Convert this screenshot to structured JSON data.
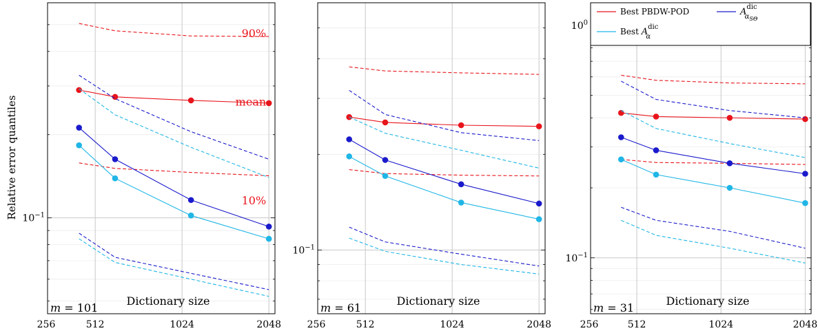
{
  "ylabel": "Relative error quantiles",
  "colors": {
    "pbdw": "#e8141b",
    "sgo": "#1a1acc",
    "alpha": "#1fb6e6"
  },
  "legend": [
    {
      "key": "pbdw",
      "label": "Best PBDW-POD",
      "math": false
    },
    {
      "key": "sgo",
      "label": "A",
      "math": true,
      "sup": "dic",
      "sub": "α",
      "subsub": "SΘ"
    },
    {
      "key": "alpha",
      "label": "Best A",
      "math": true,
      "sup": "dic",
      "sub": "α",
      "subsub": ""
    }
  ],
  "chart_data": [
    {
      "type": "line",
      "panel_label": "m = 101",
      "xlabel": "Dictionary size",
      "x_ticks": [
        256,
        512,
        1024,
        2048
      ],
      "x": [
        450,
        600,
        1100,
        2048
      ],
      "xlim": [
        350,
        2150
      ],
      "ylim": [
        0.045,
        0.6
      ],
      "yscale": "log",
      "y_ticks": [
        0.1
      ],
      "y_tick_labels": [
        "10^-1"
      ],
      "annotations": [
        {
          "text": "90%",
          "x": 2048,
          "y": 0.45
        },
        {
          "text": "mean",
          "x": 2048,
          "y": 0.255
        },
        {
          "text": "10%",
          "x": 2048,
          "y": 0.112
        }
      ],
      "series": [
        {
          "key": "pbdw",
          "stat": "mean",
          "values": [
            0.29,
            0.274,
            0.266,
            0.26
          ],
          "markers": true
        },
        {
          "key": "pbdw",
          "stat": "90%",
          "values": [
            0.505,
            0.475,
            0.455,
            0.453
          ],
          "markers": false
        },
        {
          "key": "pbdw",
          "stat": "10%",
          "values": [
            0.158,
            0.151,
            0.146,
            0.142
          ],
          "markers": false
        },
        {
          "key": "sgo",
          "stat": "mean",
          "values": [
            0.212,
            0.163,
            0.116,
            0.093
          ],
          "markers": true
        },
        {
          "key": "sgo",
          "stat": "90%",
          "values": [
            0.328,
            0.27,
            0.205,
            0.163
          ],
          "markers": false
        },
        {
          "key": "sgo",
          "stat": "10%",
          "values": [
            0.088,
            0.072,
            0.063,
            0.055
          ],
          "markers": false
        },
        {
          "key": "alpha",
          "stat": "mean",
          "values": [
            0.183,
            0.139,
            0.102,
            0.084
          ],
          "markers": true
        },
        {
          "key": "alpha",
          "stat": "90%",
          "values": [
            0.293,
            0.236,
            0.18,
            0.14
          ],
          "markers": false
        },
        {
          "key": "alpha",
          "stat": "10%",
          "values": [
            0.084,
            0.069,
            0.06,
            0.052
          ],
          "markers": false
        }
      ]
    },
    {
      "type": "line",
      "panel_label": "m = 61",
      "xlabel": "Dictionary size",
      "x_ticks": [
        256,
        512,
        1024,
        2048
      ],
      "x": [
        450,
        600,
        1100,
        2048
      ],
      "xlim": [
        350,
        2150
      ],
      "ylim": [
        0.063,
        0.6
      ],
      "yscale": "log",
      "y_ticks": [
        0.1
      ],
      "y_tick_labels": [
        "10^-1"
      ],
      "annotations": [],
      "series": [
        {
          "key": "pbdw",
          "stat": "mean",
          "values": [
            0.262,
            0.252,
            0.247,
            0.245
          ],
          "markers": true
        },
        {
          "key": "pbdw",
          "stat": "90%",
          "values": [
            0.377,
            0.366,
            0.361,
            0.357
          ],
          "markers": false
        },
        {
          "key": "pbdw",
          "stat": "10%",
          "values": [
            0.179,
            0.174,
            0.172,
            0.171
          ],
          "markers": false
        },
        {
          "key": "sgo",
          "stat": "mean",
          "values": [
            0.223,
            0.192,
            0.161,
            0.14
          ],
          "markers": true
        },
        {
          "key": "sgo",
          "stat": "90%",
          "values": [
            0.318,
            0.267,
            0.234,
            0.221
          ],
          "markers": false
        },
        {
          "key": "sgo",
          "stat": "10%",
          "values": [
            0.118,
            0.106,
            0.097,
            0.089
          ],
          "markers": false
        },
        {
          "key": "alpha",
          "stat": "mean",
          "values": [
            0.197,
            0.171,
            0.141,
            0.125
          ],
          "markers": true
        },
        {
          "key": "alpha",
          "stat": "90%",
          "values": [
            0.262,
            0.233,
            0.206,
            0.181
          ],
          "markers": false
        },
        {
          "key": "alpha",
          "stat": "10%",
          "values": [
            0.109,
            0.099,
            0.09,
            0.084
          ],
          "markers": false
        }
      ]
    },
    {
      "type": "line",
      "panel_label": "m = 31",
      "xlabel": "Dictionary size",
      "x_ticks": [
        256,
        512,
        1024,
        2048
      ],
      "x": [
        450,
        600,
        1100,
        2048
      ],
      "xlim": [
        350,
        2150
      ],
      "ylim": [
        0.0575,
        1.25
      ],
      "yscale": "log",
      "y_ticks": [
        0.1,
        1.0
      ],
      "y_tick_labels": [
        "10^-1",
        "10^0"
      ],
      "annotations": [],
      "series": [
        {
          "key": "pbdw",
          "stat": "mean",
          "values": [
            0.42,
            0.405,
            0.4,
            0.395
          ],
          "markers": true
        },
        {
          "key": "pbdw",
          "stat": "90%",
          "values": [
            0.61,
            0.58,
            0.565,
            0.56
          ],
          "markers": false
        },
        {
          "key": "pbdw",
          "stat": "10%",
          "values": [
            0.265,
            0.257,
            0.255,
            0.252
          ],
          "markers": false
        },
        {
          "key": "sgo",
          "stat": "mean",
          "values": [
            0.33,
            0.29,
            0.255,
            0.23
          ],
          "markers": true
        },
        {
          "key": "sgo",
          "stat": "90%",
          "values": [
            0.575,
            0.48,
            0.43,
            0.4
          ],
          "markers": false
        },
        {
          "key": "sgo",
          "stat": "10%",
          "values": [
            0.165,
            0.145,
            0.13,
            0.11
          ],
          "markers": false
        },
        {
          "key": "alpha",
          "stat": "mean",
          "values": [
            0.265,
            0.228,
            0.2,
            0.172
          ],
          "markers": true
        },
        {
          "key": "alpha",
          "stat": "90%",
          "values": [
            0.43,
            0.36,
            0.31,
            0.27
          ],
          "markers": false
        },
        {
          "key": "alpha",
          "stat": "10%",
          "values": [
            0.145,
            0.125,
            0.11,
            0.095
          ],
          "markers": false
        }
      ]
    }
  ]
}
